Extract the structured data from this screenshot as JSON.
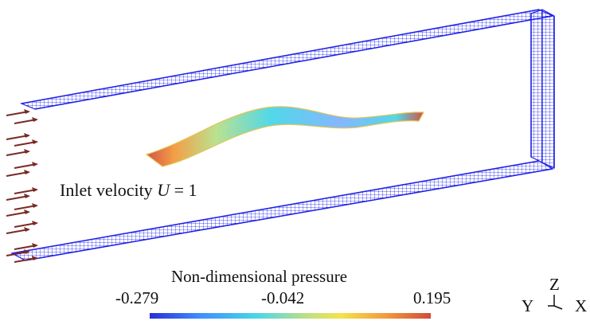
{
  "annotation": {
    "inlet_prefix": "Inlet velocity ",
    "inlet_var": "U",
    "inlet_suffix": " = 1"
  },
  "colorbar": {
    "title": "Non-dimensional pressure",
    "min_label": "-0.279",
    "mid_label": "-0.042",
    "max_label": "0.195",
    "colors": [
      "#2a2fd6",
      "#3f8fff",
      "#49d6e8",
      "#b8e08a",
      "#f4e34a",
      "#f39a3c",
      "#d24a3d"
    ]
  },
  "axes_triad": {
    "z": "Z",
    "y": "Y",
    "x": "X"
  },
  "colors": {
    "mesh": "#1f22e6",
    "arrow": "#7a2a24"
  }
}
